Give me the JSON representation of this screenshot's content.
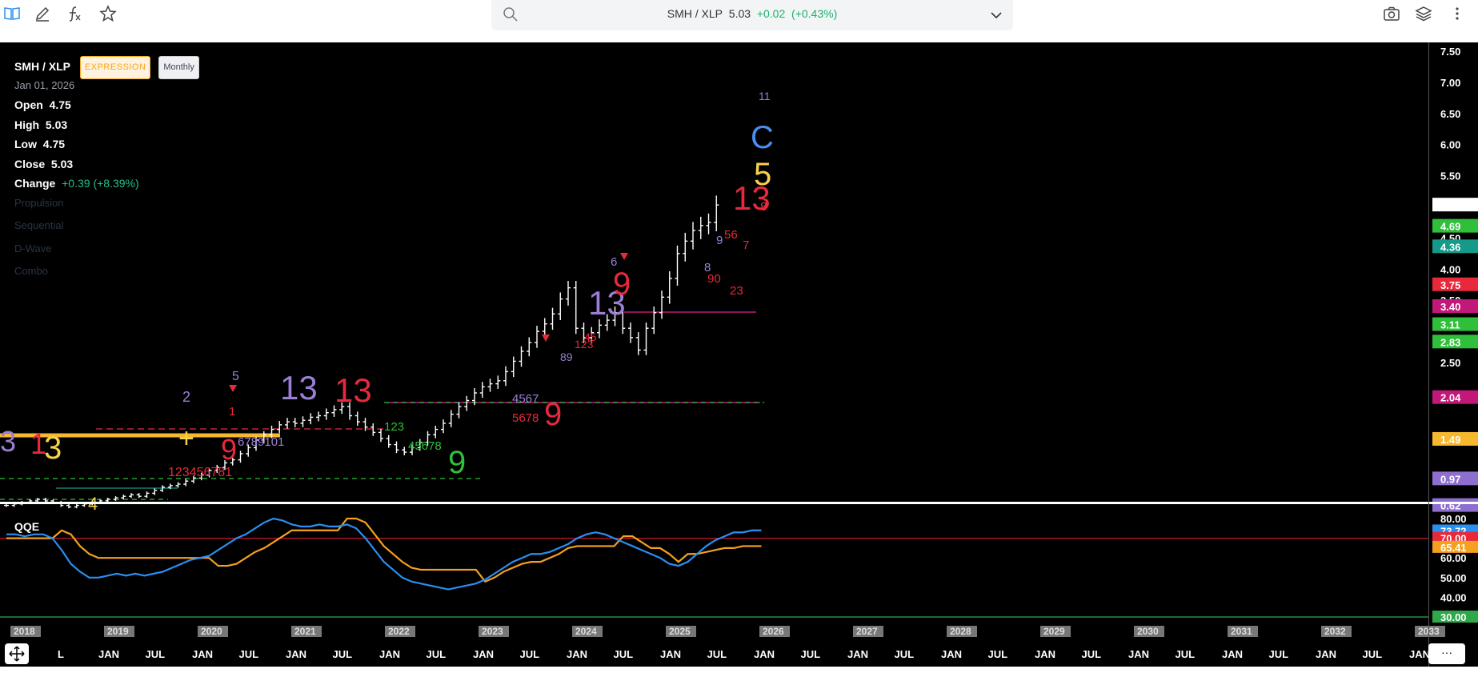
{
  "toolbar": {
    "icons": [
      "book-icon",
      "pencil-icon",
      "function-icon",
      "star-icon",
      "search-icon",
      "chevron-down-icon",
      "camera-icon",
      "layers-icon",
      "more-vertical-icon"
    ],
    "symbol": "SMH / XLP",
    "last": "5.03",
    "change": "+0.02",
    "change_pct": "(+0.43%)"
  },
  "legend": {
    "symbol": "SMH / XLP",
    "tag_expression": "EXPRESSION",
    "tag_interval": "Monthly",
    "date": "Jan 01, 2026",
    "open_label": "Open",
    "open": "4.75",
    "high_label": "High",
    "high": "5.03",
    "low_label": "Low",
    "low": "4.75",
    "close_label": "Close",
    "close": "5.03",
    "change_label": "Change",
    "change": "+0.39 (+8.39%)",
    "studies": [
      "Propulsion",
      "Sequential",
      "D-Wave",
      "Combo"
    ]
  },
  "qqe": {
    "label": "QQE"
  },
  "colors": {
    "background": "#000000",
    "price": "#ffffff",
    "seq_red": "#e8293b",
    "seq_purple": "#9b7fd6",
    "seq_green": "#2fbf3b",
    "seq_yellow": "#f7d24a",
    "seq_blue": "#4a8ef0",
    "qqe_fast": "#2a8ff0",
    "qqe_slow": "#f5a020",
    "level_70": "#c0182a",
    "level_30": "#2fa84a"
  },
  "chart_data": [
    {
      "type": "ohlc",
      "title": "SMH / XLP",
      "interval": "Monthly",
      "yaxis_ticks": [
        "7.50",
        "7.00",
        "6.50",
        "6.00",
        "5.50",
        "4.50",
        "4.00",
        "3.50",
        "2.50"
      ],
      "price_labels": [
        {
          "value": "4.69",
          "color": "#2fbf3b"
        },
        {
          "value": "4.36",
          "color": "#14998a"
        },
        {
          "value": "3.75",
          "color": "#e8293b"
        },
        {
          "value": "3.40",
          "color": "#c2187a"
        },
        {
          "value": "3.11",
          "color": "#2fbf3b"
        },
        {
          "value": "2.83",
          "color": "#2fbf3b"
        },
        {
          "value": "2.04",
          "color": "#c2187a"
        },
        {
          "value": "1.49",
          "color": "#f5b82e"
        },
        {
          "value": "0.97",
          "color": "#8e6fd0"
        },
        {
          "value": "0.62",
          "color": "#8e6fd0"
        }
      ],
      "xaxis_year_labels": [
        "2018",
        "2019",
        "2020",
        "2021",
        "2022",
        "2023",
        "2024",
        "2025",
        "2026",
        "2027",
        "2028",
        "2029",
        "2030",
        "2031",
        "2032",
        "2033"
      ],
      "xaxis_month_labels": [
        "L",
        "JAN",
        "JUL",
        "JAN",
        "JUL",
        "JAN",
        "JUL",
        "JAN",
        "JUL",
        "JAN",
        "JUL",
        "JAN",
        "JUL",
        "JAN",
        "JUL",
        "JAN",
        "JUL",
        "JAN",
        "JUL",
        "JAN",
        "JUL",
        "JAN",
        "JUL",
        "JAN",
        "JUL",
        "JAN",
        "JUL",
        "JAN",
        "JUL",
        "JAN"
      ],
      "last_bar": {
        "date": "Jan 01, 2026",
        "open": 4.75,
        "high": 5.03,
        "low": 4.75,
        "close": 5.03
      },
      "closes": [
        0.62,
        0.64,
        0.66,
        0.68,
        0.7,
        0.68,
        0.66,
        0.62,
        0.6,
        0.62,
        0.64,
        0.66,
        0.68,
        0.7,
        0.72,
        0.74,
        0.76,
        0.74,
        0.78,
        0.82,
        0.86,
        0.88,
        0.9,
        0.94,
        0.98,
        1.02,
        1.08,
        1.12,
        1.18,
        1.22,
        1.3,
        1.38,
        1.48,
        1.55,
        1.62,
        1.68,
        1.72,
        1.7,
        1.74,
        1.78,
        1.8,
        1.84,
        1.88,
        1.92,
        1.8,
        1.72,
        1.65,
        1.58,
        1.5,
        1.42,
        1.35,
        1.32,
        1.38,
        1.45,
        1.55,
        1.62,
        1.7,
        1.82,
        1.92,
        2.0,
        2.1,
        2.18,
        2.22,
        2.26,
        2.38,
        2.52,
        2.68,
        2.82,
        3.0,
        3.12,
        3.28,
        3.52,
        3.7,
        3.05,
        2.9,
        2.98,
        3.1,
        3.18,
        3.3,
        3.05,
        2.9,
        2.7,
        3.05,
        3.3,
        3.55,
        3.85,
        4.25,
        4.45,
        4.62,
        4.7,
        4.75,
        5.03
      ]
    },
    {
      "type": "line",
      "title": "QQE",
      "levels": [
        70.0,
        30.0
      ],
      "yaxis_ticks": [
        "80.00",
        "60.00",
        "50.00",
        "40.00"
      ],
      "value_labels": [
        "73.72",
        "70.00",
        "65.41",
        "30.00"
      ],
      "series": [
        {
          "name": "",
          "values": [
            72,
            72,
            71,
            72,
            72,
            70,
            64,
            57,
            53,
            50,
            50,
            51,
            52,
            51,
            52,
            51,
            52,
            53,
            55,
            57,
            59,
            60,
            61,
            64,
            67,
            70,
            72,
            75,
            78,
            80,
            79,
            77,
            76,
            76,
            77,
            76,
            76,
            77,
            75,
            70,
            64,
            58,
            54,
            50,
            48,
            47,
            46,
            45,
            44,
            45,
            46,
            47,
            49,
            52,
            55,
            58,
            60,
            62,
            62,
            63,
            65,
            67,
            70,
            72,
            73,
            72,
            70,
            68,
            66,
            64,
            62,
            60,
            57,
            56,
            58,
            62,
            66,
            69,
            71,
            73,
            73,
            74,
            74
          ]
        },
        {
          "name": "",
          "values": [
            70,
            70,
            70,
            70,
            70,
            70,
            74,
            72,
            66,
            62,
            60,
            60,
            60,
            60,
            60,
            60,
            60,
            60,
            60,
            60,
            60,
            60,
            60,
            56,
            56,
            57,
            60,
            63,
            65,
            68,
            71,
            74,
            74,
            74,
            74,
            74,
            74,
            80,
            80,
            78,
            72,
            66,
            62,
            58,
            55,
            54,
            54,
            54,
            54,
            54,
            54,
            54,
            48,
            50,
            53,
            55,
            57,
            58,
            58,
            60,
            62,
            65,
            66,
            66,
            66,
            66,
            66,
            71,
            71,
            68,
            65,
            65,
            62,
            58,
            62,
            62,
            63,
            64,
            65,
            65,
            66,
            66,
            66
          ]
        }
      ]
    }
  ]
}
